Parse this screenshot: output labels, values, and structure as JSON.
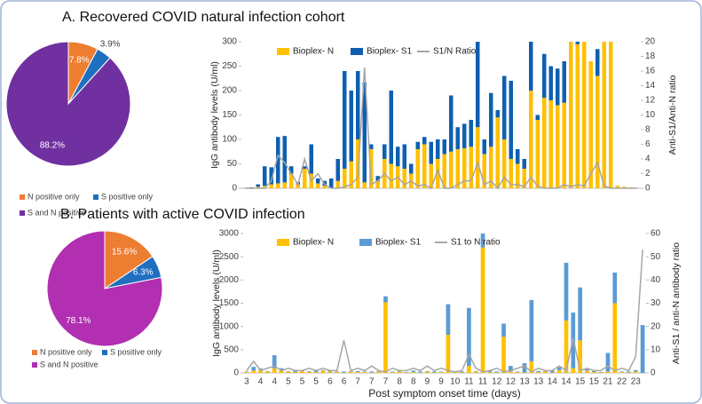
{
  "chart_data": [
    {
      "type": "pie",
      "title": "A. Recovered COVID natural infection cohort",
      "categories": [
        "N positive only",
        "S positive only",
        "S and N positive"
      ],
      "values": [
        7.8,
        3.9,
        88.2
      ],
      "value_labels": [
        "7.8%",
        "3.9%",
        "88.2%"
      ],
      "colors": [
        "#ed7d31",
        "#1f6fc0",
        "#7030a0"
      ]
    },
    {
      "type": "bar",
      "stacked": true,
      "ylabel": "IgG antibody levels (U/ml)",
      "y2label": "Anti-S1/Anti-N ratio",
      "ylim": [
        0,
        300
      ],
      "yticks": [
        0,
        50,
        100,
        150,
        200,
        250,
        300
      ],
      "y2lim": [
        0,
        20
      ],
      "y2ticks": [
        0,
        2,
        4,
        6,
        8,
        10,
        12,
        14,
        16,
        18,
        20
      ],
      "categories": [
        null,
        null,
        null,
        null,
        null,
        null,
        null,
        null,
        null,
        null,
        null,
        null,
        null,
        null,
        null,
        null,
        null,
        null,
        null,
        null,
        null,
        null,
        null,
        null,
        null,
        null,
        null,
        null,
        null,
        null,
        null,
        null,
        null,
        null,
        null,
        null,
        null,
        null,
        null,
        null,
        null,
        null,
        null,
        null,
        null,
        null,
        null,
        null,
        null,
        null,
        null,
        null,
        null,
        null,
        null,
        null,
        null,
        null,
        null,
        null
      ],
      "series": [
        {
          "name": "Bioplex- N",
          "color": "#ffc000",
          "values": [
            0,
            0,
            3,
            5,
            8,
            10,
            12,
            30,
            8,
            40,
            30,
            10,
            5,
            0,
            15,
            40,
            55,
            100,
            12,
            80,
            15,
            60,
            50,
            45,
            40,
            30,
            80,
            90,
            50,
            60,
            70,
            75,
            80,
            82,
            85,
            125,
            70,
            85,
            145,
            100,
            60,
            50,
            40,
            200,
            140,
            185,
            180,
            170,
            175,
            300,
            295,
            300,
            260,
            230,
            300,
            300,
            5,
            3,
            2,
            0
          ]
        },
        {
          "name": "Bioplex- S1",
          "color": "#0f5fb0",
          "values": [
            0,
            2,
            5,
            40,
            35,
            95,
            95,
            15,
            5,
            5,
            60,
            10,
            10,
            20,
            45,
            200,
            145,
            140,
            205,
            10,
            10,
            30,
            150,
            40,
            50,
            20,
            15,
            15,
            45,
            40,
            30,
            115,
            45,
            50,
            55,
            175,
            30,
            110,
            15,
            130,
            160,
            30,
            20,
            100,
            10,
            90,
            70,
            75,
            85,
            0,
            5,
            0,
            0,
            55,
            0,
            0,
            0,
            0,
            0,
            0
          ]
        },
        {
          "name": "S1/N Ratio",
          "color": "#a6a6a6",
          "axis": "y2",
          "values": [
            0,
            0,
            0,
            0,
            1,
            4.5,
            3.5,
            2,
            0.5,
            4,
            1,
            2,
            0.5,
            0,
            0,
            0.2,
            0.5,
            1.5,
            16.5,
            0.5,
            1,
            2,
            1,
            1.5,
            0.5,
            1,
            0.3,
            0.5,
            0,
            2.5,
            0,
            0,
            0.5,
            1,
            1,
            3.5,
            0.5,
            1,
            0,
            1.5,
            0.5,
            0.5,
            0.2,
            1.5,
            0.3,
            0,
            0,
            0,
            0.5,
            0.2,
            0.5,
            0.3,
            2,
            3.5,
            0.3,
            0,
            0,
            0,
            0,
            0
          ]
        }
      ]
    },
    {
      "type": "pie",
      "title": "B. Patients with active COVID infection",
      "categories": [
        "N positive only",
        "S positive only",
        "S and N positive"
      ],
      "values": [
        15.6,
        6.3,
        78.1
      ],
      "value_labels": [
        "15.6%",
        "6.3%",
        "78.1%"
      ],
      "colors": [
        "#ed7d31",
        "#1f6fc0",
        "#b12fb0"
      ]
    },
    {
      "type": "bar",
      "stacked": true,
      "xlabel": "Post symptom onset time (days)",
      "ylabel": "IgG antibody levels (U/ml)",
      "y2label": "Anti-S1 / anti-N antibody ratio",
      "ylim": [
        0,
        3000
      ],
      "yticks": [
        0,
        500,
        1000,
        1500,
        2000,
        2500,
        3000
      ],
      "y2lim": [
        0,
        60
      ],
      "y2ticks": [
        0,
        10,
        20,
        30,
        40,
        50,
        60
      ],
      "categories": [
        "3",
        null,
        "4",
        null,
        "4",
        null,
        "5",
        null,
        "5",
        null,
        "5",
        null,
        "6",
        null,
        "6",
        null,
        "7",
        null,
        "7",
        null,
        "7",
        null,
        "8",
        null,
        "8",
        null,
        "9",
        null,
        "9",
        null,
        "10",
        null,
        "11",
        null,
        "11",
        null,
        "12",
        null,
        "12",
        null,
        "13",
        null,
        "13",
        null,
        "14",
        null,
        "14",
        null,
        "15",
        null,
        "15",
        null,
        "21",
        null,
        "22",
        null,
        "23",
        null
      ],
      "series": [
        {
          "name": "Bioplex- N",
          "color": "#ffc000",
          "values": [
            20,
            50,
            80,
            30,
            100,
            60,
            30,
            20,
            40,
            30,
            20,
            50,
            30,
            20,
            10,
            30,
            20,
            20,
            10,
            30,
            1520,
            20,
            30,
            10,
            20,
            10,
            30,
            10,
            20,
            820,
            20,
            10,
            150,
            30,
            2700,
            20,
            10,
            780,
            30,
            20,
            10,
            250,
            20,
            30,
            10,
            60,
            1130,
            100,
            700,
            50,
            20,
            10,
            30,
            1500,
            20,
            10,
            30,
            0
          ]
        },
        {
          "name": "Bioplex- S1",
          "color": "#5b9bd5",
          "values": [
            10,
            80,
            20,
            10,
            280,
            40,
            10,
            30,
            20,
            10,
            30,
            10,
            20,
            10,
            20,
            10,
            20,
            10,
            20,
            10,
            130,
            10,
            20,
            10,
            30,
            20,
            10,
            20,
            10,
            660,
            10,
            20,
            1250,
            10,
            300,
            30,
            20,
            280,
            120,
            10,
            200,
            1320,
            20,
            10,
            40,
            60,
            1240,
            1200,
            1140,
            30,
            20,
            10,
            400,
            660,
            10,
            20,
            30,
            1030
          ]
        },
        {
          "name": "S1 to N ratio",
          "color": "#a6a6a6",
          "axis": "y2",
          "values": [
            1,
            5,
            1,
            2,
            3,
            1,
            2,
            1,
            1,
            2,
            1,
            2,
            1,
            1,
            14,
            1,
            2,
            1,
            3,
            1,
            0.5,
            2,
            1,
            1,
            2,
            1,
            3,
            1,
            2,
            1,
            0.5,
            1,
            8,
            2,
            0.5,
            1,
            2,
            0.5,
            1,
            2,
            3,
            0.5,
            2,
            1,
            1,
            3,
            1,
            15,
            1,
            2,
            1,
            1,
            3,
            1,
            2,
            1,
            7,
            53
          ]
        }
      ]
    }
  ]
}
